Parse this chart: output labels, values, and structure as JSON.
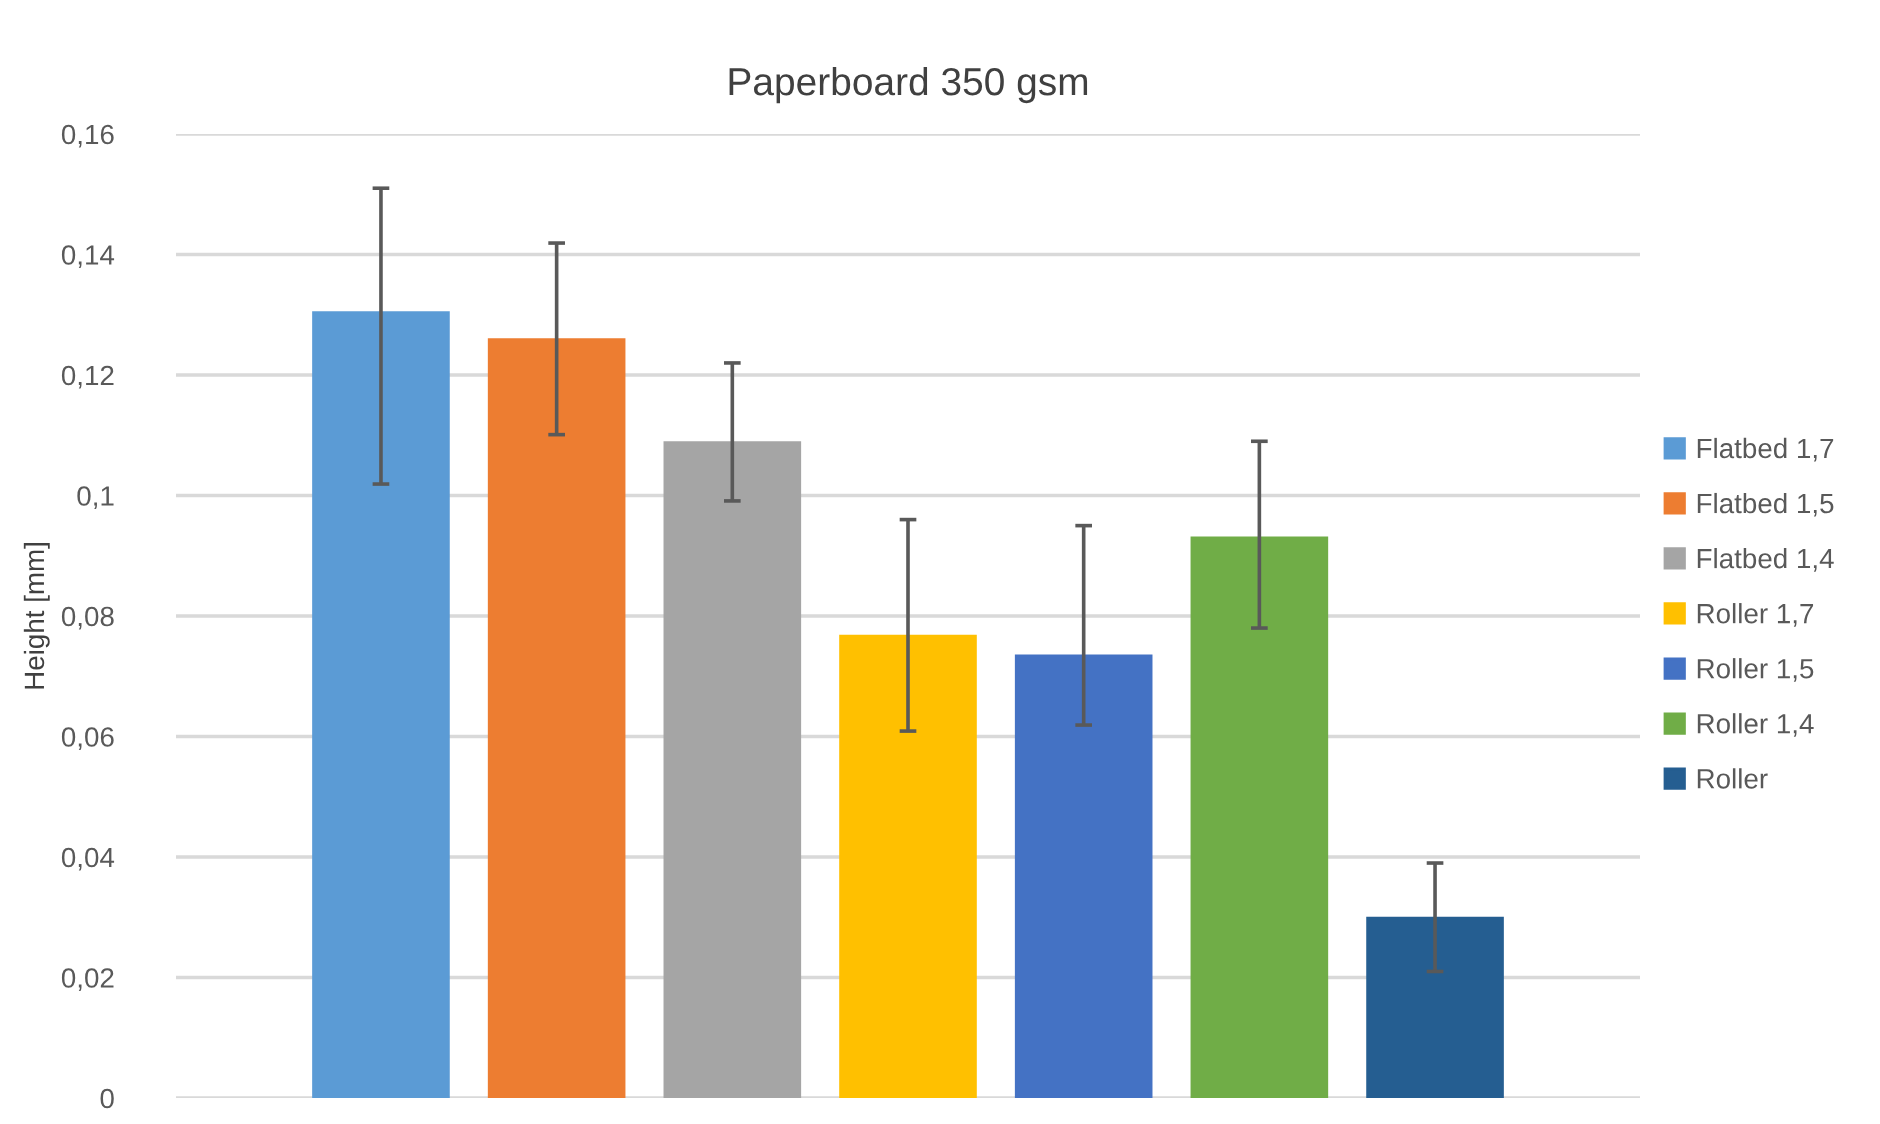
{
  "chart_data": {
    "type": "bar",
    "title": "Paperboard 350 gsm",
    "ylabel": "Height [mm]",
    "categories": [
      null
    ],
    "series": [
      {
        "name": "Flatbed 1,7",
        "color": "#5b9bd5",
        "values": [
          0.1306
        ],
        "errors": [
          [
            0.1019,
            0.151
          ]
        ]
      },
      {
        "name": "Flatbed 1,5",
        "color": "#ed7d31",
        "values": [
          0.1261
        ],
        "errors": [
          [
            0.1101,
            0.1419
          ]
        ]
      },
      {
        "name": "Flatbed 1,4",
        "color": "#a5a5a5",
        "values": [
          0.109
        ],
        "errors": [
          [
            0.0991,
            0.122
          ]
        ]
      },
      {
        "name": "Roller 1,7",
        "color": "#ffc000",
        "values": [
          0.0769
        ],
        "errors": [
          [
            0.0609,
            0.096
          ]
        ]
      },
      {
        "name": "Roller 1,5",
        "color": "#4472c4",
        "values": [
          0.0736
        ],
        "errors": [
          [
            0.0619,
            0.095
          ]
        ]
      },
      {
        "name": "Roller 1,4",
        "color": "#70ad47",
        "values": [
          0.0932
        ],
        "errors": [
          [
            0.078,
            0.109
          ]
        ]
      },
      {
        "name": "Roller",
        "color": "#255e91",
        "values": [
          0.0301
        ],
        "errors": [
          [
            0.021,
            0.039
          ]
        ]
      }
    ],
    "ylim": [
      0,
      0.16
    ],
    "yticks": [
      {
        "value": 0,
        "label": "0"
      },
      {
        "value": 0.02,
        "label": "0,02"
      },
      {
        "value": 0.04,
        "label": "0,04"
      },
      {
        "value": 0.06,
        "label": "0,06"
      },
      {
        "value": 0.08,
        "label": "0,08"
      },
      {
        "value": 0.1,
        "label": "0,1"
      },
      {
        "value": 0.12,
        "label": "0,12"
      },
      {
        "value": 0.14,
        "label": "0,14"
      },
      {
        "value": 0.16,
        "label": "0,16"
      }
    ],
    "grid": "y",
    "legend": "right",
    "tick_labels": "y"
  }
}
